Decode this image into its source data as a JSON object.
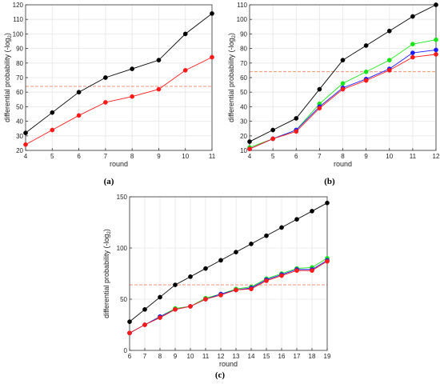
{
  "figure": {
    "captions": [
      "(a)",
      "(b)",
      "(c)"
    ]
  },
  "colors": {
    "black": "#000000",
    "red": "#ff1a1a",
    "blue": "#1a1aff",
    "green": "#19e619",
    "threshold": "#f08060",
    "grid": "#e6e6e6",
    "axis": "#333333"
  },
  "chart_data": [
    {
      "type": "line",
      "panel": "(a)",
      "xlabel": "round",
      "ylabel_main": "differential probability (-log",
      "ylabel_sub": "2",
      "ylabel_tail": ")",
      "xlim": [
        4,
        11
      ],
      "ylim": [
        20,
        120
      ],
      "xticks": [
        4,
        5,
        6,
        7,
        8,
        9,
        10,
        11
      ],
      "yticks": [
        20,
        30,
        40,
        50,
        60,
        70,
        80,
        90,
        100,
        110,
        120
      ],
      "grid": true,
      "threshold": 64,
      "x": [
        4,
        5,
        6,
        7,
        8,
        9,
        10,
        11
      ],
      "series": [
        {
          "color": "black",
          "values": [
            32,
            46,
            60,
            70,
            76,
            82,
            100,
            114
          ]
        },
        {
          "color": "red",
          "values": [
            24,
            34,
            44,
            53,
            57,
            62,
            75,
            84
          ]
        }
      ]
    },
    {
      "type": "line",
      "panel": "(b)",
      "xlabel": "round",
      "ylabel_main": "differential probability (-log",
      "ylabel_sub": "2",
      "ylabel_tail": ")",
      "xlim": [
        4,
        12
      ],
      "ylim": [
        10,
        110
      ],
      "xticks": [
        4,
        5,
        6,
        7,
        8,
        9,
        10,
        11,
        12
      ],
      "yticks": [
        10,
        20,
        30,
        40,
        50,
        60,
        70,
        80,
        90,
        100,
        110
      ],
      "grid": true,
      "threshold": 64,
      "x": [
        4,
        5,
        6,
        7,
        8,
        9,
        10,
        11,
        12
      ],
      "series": [
        {
          "color": "black",
          "values": [
            16,
            24,
            32,
            52,
            72,
            82,
            92,
            102,
            110
          ]
        },
        {
          "color": "green",
          "values": [
            12,
            18,
            24,
            42,
            56,
            64,
            72,
            83,
            86
          ]
        },
        {
          "color": "blue",
          "values": [
            11,
            18,
            24,
            40,
            53,
            59,
            66,
            77,
            79
          ]
        },
        {
          "color": "red",
          "values": [
            11,
            18,
            23,
            39,
            52,
            58,
            65,
            74,
            76
          ]
        }
      ]
    },
    {
      "type": "line",
      "panel": "(c)",
      "xlabel": "round",
      "ylabel_main": "differential probability (-log",
      "ylabel_sub": "2",
      "ylabel_tail": ")",
      "xlim": [
        6,
        19
      ],
      "ylim": [
        0,
        150
      ],
      "xticks": [
        6,
        7,
        8,
        9,
        10,
        11,
        12,
        13,
        14,
        15,
        16,
        17,
        18,
        19
      ],
      "yticks": [
        0,
        50,
        100,
        150
      ],
      "grid": true,
      "threshold": 64,
      "x": [
        6,
        7,
        8,
        9,
        10,
        11,
        12,
        13,
        14,
        15,
        16,
        17,
        18,
        19
      ],
      "series": [
        {
          "color": "black",
          "values": [
            28,
            40,
            52,
            64,
            72,
            80,
            88,
            96,
            104,
            112,
            120,
            128,
            136,
            144
          ]
        },
        {
          "color": "green",
          "values": [
            17,
            25,
            33,
            41,
            43,
            51,
            55,
            60,
            62,
            70,
            75,
            80,
            81,
            90
          ]
        },
        {
          "color": "blue",
          "values": [
            17,
            25,
            33,
            40,
            43,
            50,
            55,
            59,
            61,
            69,
            74,
            79,
            79,
            88
          ]
        },
        {
          "color": "red",
          "values": [
            17,
            25,
            32,
            40,
            43,
            50,
            54,
            59,
            60,
            68,
            73,
            78,
            78,
            87
          ]
        }
      ]
    }
  ]
}
